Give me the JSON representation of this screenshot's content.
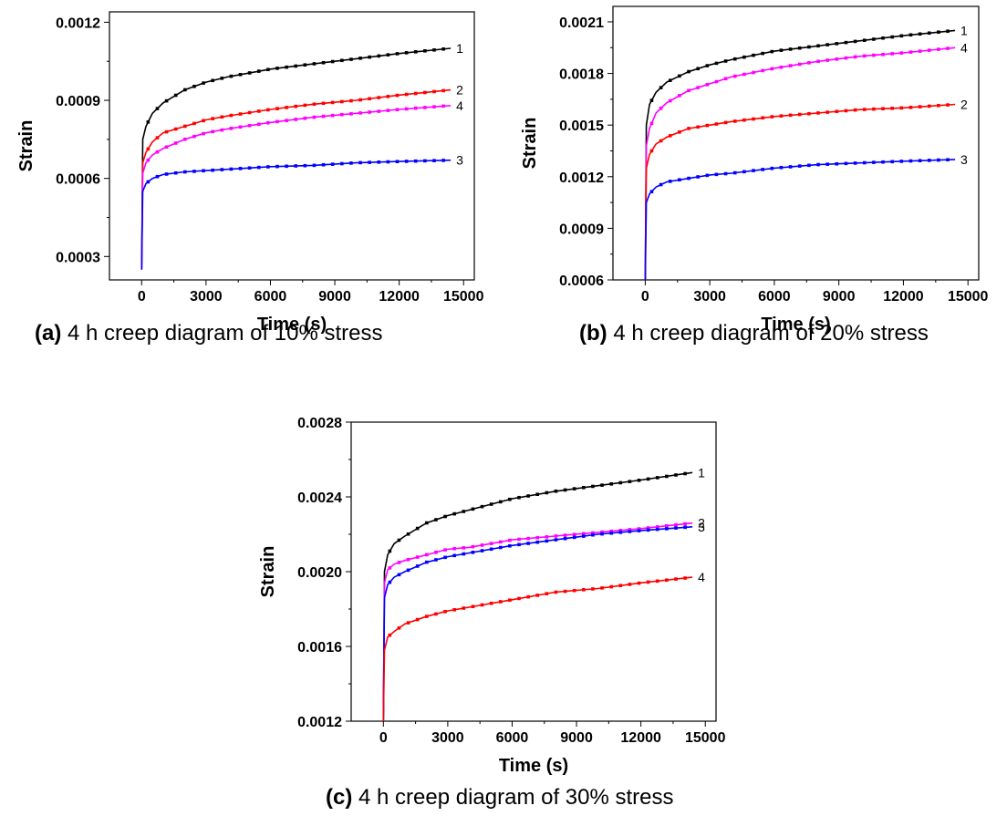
{
  "chart_data": [
    {
      "type": "line",
      "caption_label": "(a)",
      "caption_text": "4 h creep diagram of 10% stress",
      "xlabel": "Time (s)",
      "ylabel": "Strain",
      "xlim": [
        -1500,
        15500
      ],
      "ylim": [
        0.00021,
        0.00124
      ],
      "xticks": [
        0,
        3000,
        6000,
        9000,
        12000,
        15000
      ],
      "xtick_labels": [
        "0",
        "3000",
        "6000",
        "9000",
        "12000",
        "15000"
      ],
      "yticks": [
        0.0003,
        0.0006,
        0.0009,
        0.0012
      ],
      "ytick_labels": [
        "0.0003",
        "0.0006",
        "0.0009",
        "0.0012"
      ],
      "grid": false,
      "series": [
        {
          "name": "1",
          "color": "#000000",
          "x": [
            0,
            50,
            200,
            500,
            1000,
            2000,
            3000,
            4000,
            6000,
            8000,
            10000,
            12000,
            14400
          ],
          "y": [
            0.00025,
            0.00075,
            0.0008,
            0.00085,
            0.00089,
            0.00094,
            0.00097,
            0.00099,
            0.00102,
            0.00104,
            0.00106,
            0.00108,
            0.0011
          ]
        },
        {
          "name": "2",
          "color": "#ff0000",
          "x": [
            0,
            50,
            200,
            500,
            1000,
            2000,
            3000,
            4000,
            6000,
            8000,
            10000,
            12000,
            14400
          ],
          "y": [
            0.00025,
            0.00066,
            0.0007,
            0.00074,
            0.000775,
            0.0008,
            0.000825,
            0.00084,
            0.000865,
            0.000885,
            0.0009,
            0.00092,
            0.00094
          ]
        },
        {
          "name": "4",
          "color": "#ff00ff",
          "x": [
            0,
            50,
            200,
            500,
            1000,
            2000,
            3000,
            4000,
            6000,
            8000,
            10000,
            12000,
            14400
          ],
          "y": [
            0.00025,
            0.00062,
            0.00066,
            0.00069,
            0.000715,
            0.00075,
            0.000775,
            0.00079,
            0.000815,
            0.000835,
            0.00085,
            0.000865,
            0.00088
          ]
        },
        {
          "name": "3",
          "color": "#0000ff",
          "x": [
            0,
            50,
            200,
            500,
            1000,
            2000,
            3000,
            4000,
            6000,
            8000,
            10000,
            12000,
            14400
          ],
          "y": [
            0.00025,
            0.00055,
            0.00058,
            0.0006,
            0.000615,
            0.000625,
            0.00063,
            0.000635,
            0.000645,
            0.00065,
            0.00066,
            0.000665,
            0.00067
          ]
        }
      ]
    },
    {
      "type": "line",
      "caption_label": "(b)",
      "caption_text": "4 h creep diagram of 20% stress",
      "xlabel": "Time (s)",
      "ylabel": "Strain",
      "xlim": [
        -1500,
        15500
      ],
      "ylim": [
        0.0006,
        0.00219
      ],
      "xticks": [
        0,
        3000,
        6000,
        9000,
        12000,
        15000
      ],
      "xtick_labels": [
        "0",
        "3000",
        "6000",
        "9000",
        "12000",
        "15000"
      ],
      "yticks": [
        0.0006,
        0.0009,
        0.0012,
        0.0015,
        0.0018,
        0.0021
      ],
      "ytick_labels": [
        "0.0006",
        "0.0009",
        "0.0012",
        "0.0015",
        "0.0018",
        "0.0021"
      ],
      "grid": false,
      "series": [
        {
          "name": "1",
          "color": "#000000",
          "x": [
            0,
            50,
            200,
            500,
            1000,
            2000,
            3000,
            4000,
            6000,
            8000,
            10000,
            12000,
            14400
          ],
          "y": [
            0.0006,
            0.0015,
            0.00162,
            0.00169,
            0.00175,
            0.00181,
            0.00185,
            0.00188,
            0.00193,
            0.00196,
            0.00199,
            0.00202,
            0.00205
          ]
        },
        {
          "name": "4",
          "color": "#ff00ff",
          "x": [
            0,
            50,
            200,
            500,
            1000,
            2000,
            3000,
            4000,
            6000,
            8000,
            10000,
            12000,
            14400
          ],
          "y": [
            0.0006,
            0.00138,
            0.00148,
            0.00157,
            0.00163,
            0.0017,
            0.00174,
            0.00178,
            0.00183,
            0.00187,
            0.0019,
            0.00192,
            0.00195
          ]
        },
        {
          "name": "2",
          "color": "#ff0000",
          "x": [
            0,
            50,
            200,
            500,
            1000,
            2000,
            3000,
            4000,
            6000,
            8000,
            10000,
            12000,
            14400
          ],
          "y": [
            0.0006,
            0.00125,
            0.00133,
            0.00139,
            0.00143,
            0.00148,
            0.0015,
            0.00152,
            0.00155,
            0.00157,
            0.00159,
            0.0016,
            0.00162
          ]
        },
        {
          "name": "3",
          "color": "#0000ff",
          "x": [
            0,
            50,
            200,
            500,
            1000,
            2000,
            3000,
            4000,
            6000,
            8000,
            10000,
            12000,
            14400
          ],
          "y": [
            0.0006,
            0.00105,
            0.0011,
            0.00114,
            0.00117,
            0.00119,
            0.00121,
            0.00122,
            0.00125,
            0.00127,
            0.00128,
            0.00129,
            0.0013
          ]
        }
      ]
    },
    {
      "type": "line",
      "caption_label": "(c)",
      "caption_text": "4 h creep diagram of 30% stress",
      "xlabel": "Time (s)",
      "ylabel": "Strain",
      "xlim": [
        -1500,
        15500
      ],
      "ylim": [
        0.0012,
        0.0028
      ],
      "xticks": [
        0,
        3000,
        6000,
        9000,
        12000,
        15000
      ],
      "xtick_labels": [
        "0",
        "3000",
        "6000",
        "9000",
        "12000",
        "15000"
      ],
      "yticks": [
        0.0012,
        0.0016,
        0.002,
        0.0024,
        0.0028
      ],
      "ytick_labels": [
        "0.0012",
        "0.0016",
        "0.0020",
        "0.0024",
        "0.0028"
      ],
      "grid": false,
      "series": [
        {
          "name": "1",
          "color": "#000000",
          "x": [
            0,
            50,
            200,
            500,
            1000,
            2000,
            3000,
            4000,
            6000,
            8000,
            10000,
            12000,
            14400
          ],
          "y": [
            0.0012,
            0.002,
            0.00209,
            0.00215,
            0.00219,
            0.00226,
            0.0023,
            0.00233,
            0.00239,
            0.00243,
            0.00246,
            0.00249,
            0.00253
          ]
        },
        {
          "name": "2",
          "color": "#ff00ff",
          "x": [
            0,
            50,
            200,
            500,
            1000,
            2000,
            3000,
            4000,
            6000,
            8000,
            10000,
            12000,
            14400
          ],
          "y": [
            0.0012,
            0.00194,
            0.00201,
            0.00204,
            0.00206,
            0.00209,
            0.00212,
            0.00213,
            0.00217,
            0.00219,
            0.00221,
            0.00223,
            0.00226
          ]
        },
        {
          "name": "3",
          "color": "#0000ff",
          "x": [
            0,
            50,
            200,
            500,
            1000,
            2000,
            3000,
            4000,
            6000,
            8000,
            10000,
            12000,
            14400
          ],
          "y": [
            0.0012,
            0.00186,
            0.00193,
            0.00197,
            0.002,
            0.00205,
            0.00208,
            0.0021,
            0.00214,
            0.00217,
            0.0022,
            0.00222,
            0.00224
          ]
        },
        {
          "name": "4",
          "color": "#ff0000",
          "x": [
            0,
            50,
            200,
            500,
            1000,
            2000,
            3000,
            4000,
            6000,
            8000,
            10000,
            12000,
            14400
          ],
          "y": [
            0.0012,
            0.00158,
            0.00165,
            0.00168,
            0.00172,
            0.00176,
            0.00179,
            0.00181,
            0.00185,
            0.00189,
            0.00191,
            0.00194,
            0.00197
          ]
        }
      ]
    }
  ]
}
